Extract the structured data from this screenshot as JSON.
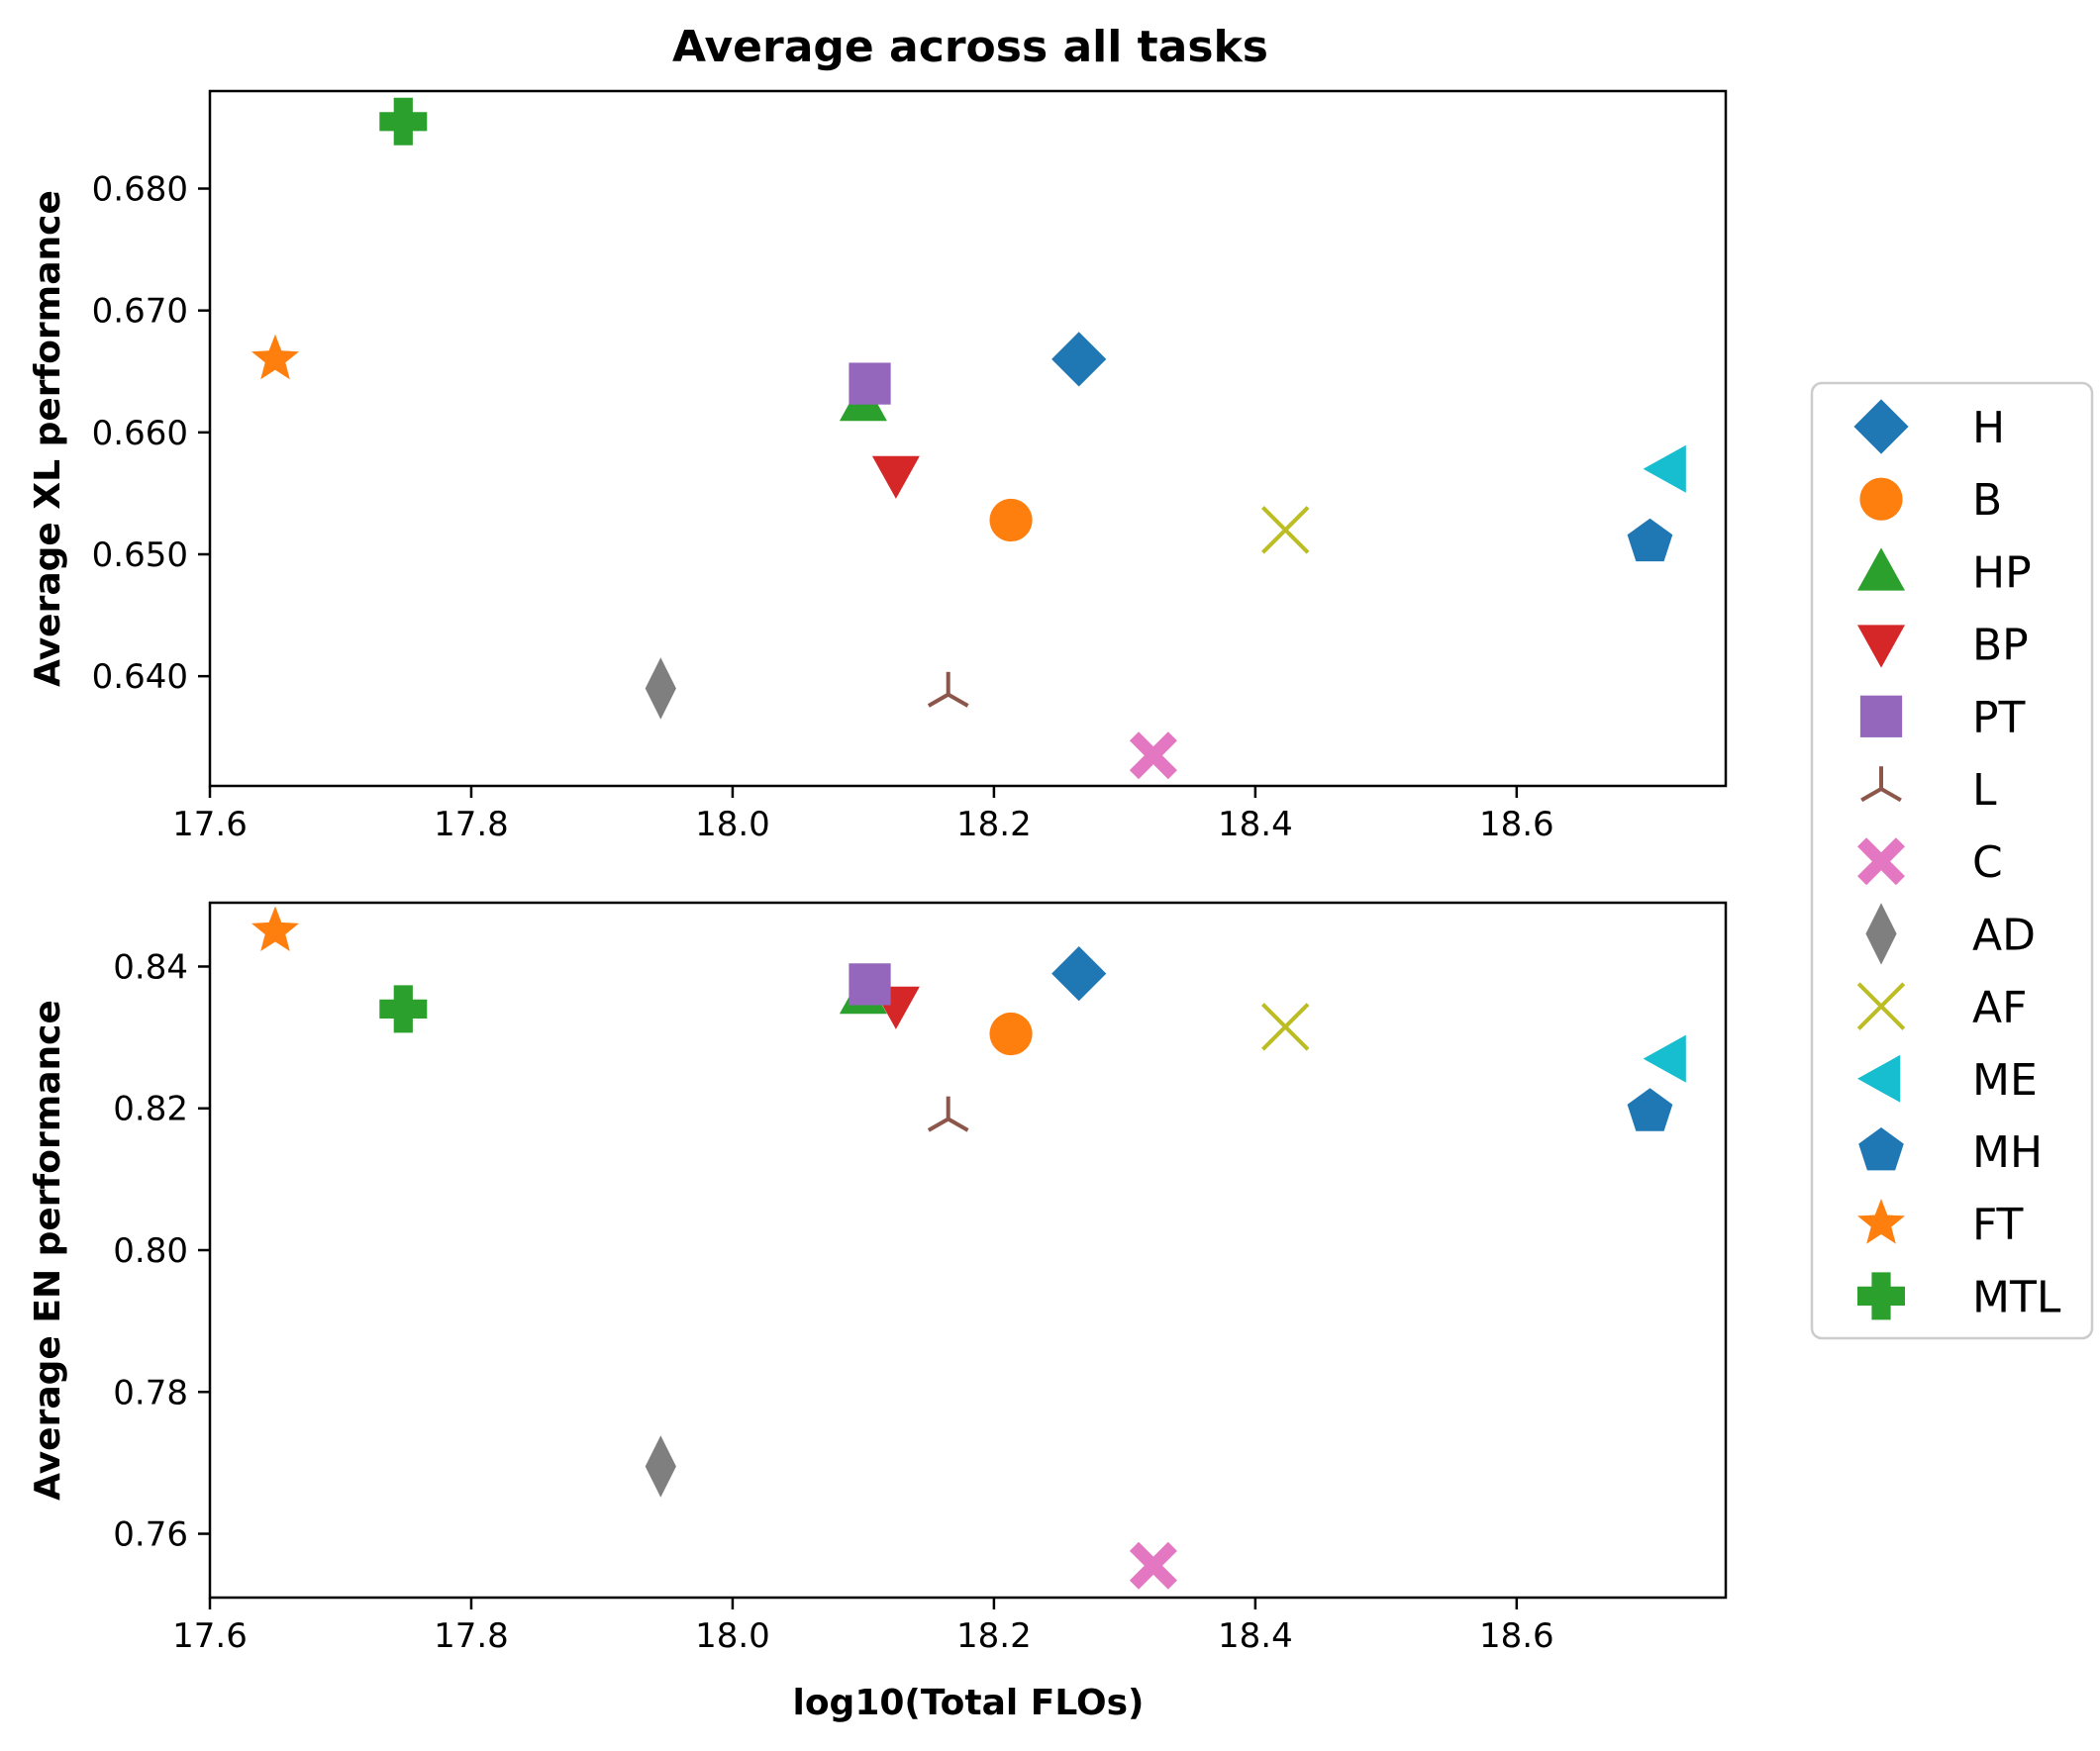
{
  "chart_data": [
    {
      "type": "scatter",
      "title": "Average across all tasks",
      "xlabel": "",
      "ylabel": "Average XL performance",
      "xlim": [
        17.6,
        18.76
      ],
      "ylim": [
        0.631,
        0.688
      ],
      "xticks": [
        "17.6",
        "17.8",
        "18.0",
        "18.2",
        "18.4",
        "18.6"
      ],
      "yticks": [
        "0.640",
        "0.650",
        "0.660",
        "0.670",
        "0.680"
      ],
      "xtick_values": [
        17.6,
        17.8,
        18.0,
        18.2,
        18.4,
        18.6
      ],
      "ytick_values": [
        0.64,
        0.65,
        0.66,
        0.67,
        0.68
      ],
      "series": [
        {
          "name": "H",
          "x": 18.265,
          "y": 0.666
        },
        {
          "name": "B",
          "x": 18.213,
          "y": 0.6528
        },
        {
          "name": "HP",
          "x": 18.1,
          "y": 0.6625
        },
        {
          "name": "BP",
          "x": 18.125,
          "y": 0.6565
        },
        {
          "name": "PT",
          "x": 18.105,
          "y": 0.664
        },
        {
          "name": "L",
          "x": 18.165,
          "y": 0.6385
        },
        {
          "name": "C",
          "x": 18.322,
          "y": 0.6335
        },
        {
          "name": "AD",
          "x": 17.945,
          "y": 0.639
        },
        {
          "name": "AF",
          "x": 18.423,
          "y": 0.652
        },
        {
          "name": "ME",
          "x": 18.715,
          "y": 0.657
        },
        {
          "name": "MH",
          "x": 18.702,
          "y": 0.651
        },
        {
          "name": "FT",
          "x": 17.65,
          "y": 0.666
        },
        {
          "name": "MTL",
          "x": 17.748,
          "y": 0.6855
        }
      ]
    },
    {
      "type": "scatter",
      "title": "",
      "xlabel": "log10(Total FLOs)",
      "ylabel": "Average EN performance",
      "xlim": [
        17.6,
        18.76
      ],
      "ylim": [
        0.751,
        0.849
      ],
      "xticks": [
        "17.6",
        "17.8",
        "18.0",
        "18.2",
        "18.4",
        "18.6"
      ],
      "yticks": [
        "0.76",
        "0.78",
        "0.80",
        "0.82",
        "0.84"
      ],
      "xtick_values": [
        17.6,
        17.8,
        18.0,
        18.2,
        18.4,
        18.6
      ],
      "ytick_values": [
        0.76,
        0.78,
        0.8,
        0.82,
        0.84
      ],
      "series": [
        {
          "name": "H",
          "x": 18.265,
          "y": 0.839
        },
        {
          "name": "B",
          "x": 18.213,
          "y": 0.8305
        },
        {
          "name": "HP",
          "x": 18.1,
          "y": 0.836
        },
        {
          "name": "BP",
          "x": 18.125,
          "y": 0.8345
        },
        {
          "name": "PT",
          "x": 18.105,
          "y": 0.8375
        },
        {
          "name": "L",
          "x": 18.165,
          "y": 0.8185
        },
        {
          "name": "C",
          "x": 18.322,
          "y": 0.7555
        },
        {
          "name": "AD",
          "x": 17.945,
          "y": 0.7695
        },
        {
          "name": "AF",
          "x": 18.423,
          "y": 0.8315
        },
        {
          "name": "ME",
          "x": 18.715,
          "y": 0.827
        },
        {
          "name": "MH",
          "x": 18.702,
          "y": 0.8195
        },
        {
          "name": "FT",
          "x": 17.65,
          "y": 0.845
        },
        {
          "name": "MTL",
          "x": 17.748,
          "y": 0.834
        }
      ]
    }
  ],
  "legend": {
    "placement": "right-center",
    "items": [
      {
        "label": "H",
        "marker": "diamond",
        "color": "#1f77b4"
      },
      {
        "label": "B",
        "marker": "circle",
        "color": "#ff7f0e"
      },
      {
        "label": "HP",
        "marker": "triangle-up",
        "color": "#2ca02c"
      },
      {
        "label": "BP",
        "marker": "triangle-down",
        "color": "#d62728"
      },
      {
        "label": "PT",
        "marker": "square",
        "color": "#9467bd"
      },
      {
        "label": "L",
        "marker": "tri-up",
        "color": "#8c564b"
      },
      {
        "label": "C",
        "marker": "x-filled",
        "color": "#e377c2"
      },
      {
        "label": "AD",
        "marker": "thin-diamond",
        "color": "#7f7f7f"
      },
      {
        "label": "AF",
        "marker": "x",
        "color": "#bcbd22"
      },
      {
        "label": "ME",
        "marker": "triangle-left",
        "color": "#17becf"
      },
      {
        "label": "MH",
        "marker": "pentagon",
        "color": "#1f77b4"
      },
      {
        "label": "FT",
        "marker": "star",
        "color": "#ff7f0e"
      },
      {
        "label": "MTL",
        "marker": "plus-filled",
        "color": "#2ca02c"
      }
    ]
  }
}
